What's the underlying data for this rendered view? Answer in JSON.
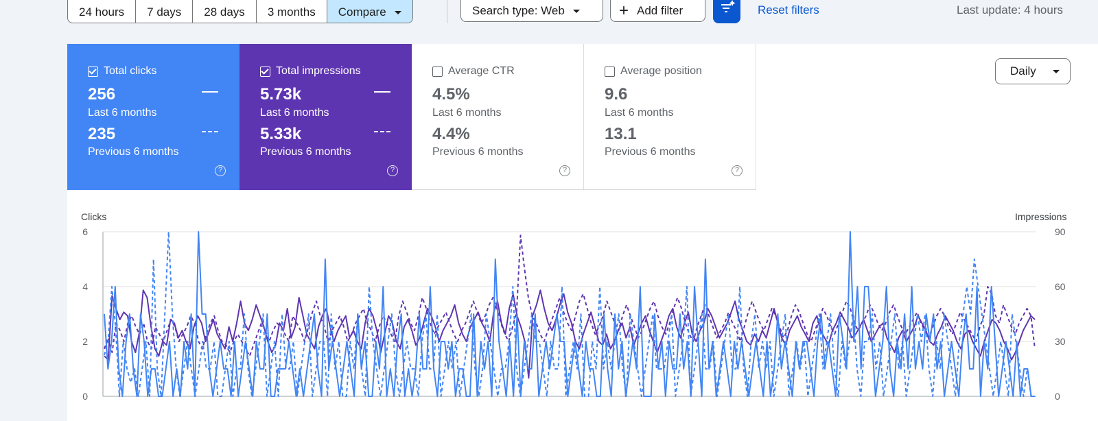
{
  "filters": {
    "date_ranges": [
      {
        "label": "24 hours",
        "active": false
      },
      {
        "label": "7 days",
        "active": false
      },
      {
        "label": "28 days",
        "active": false
      },
      {
        "label": "3 months",
        "active": false
      },
      {
        "label": "Compare",
        "active": true
      }
    ],
    "search_type_label": "Search type: Web",
    "add_filter_label": "Add filter",
    "reset_label": "Reset filters",
    "last_update": "Last update: 4 hours"
  },
  "metrics": [
    {
      "key": "clicks",
      "label": "Total clicks",
      "checked": true,
      "current": "256",
      "current_period": "Last 6 months",
      "previous": "235",
      "previous_period": "Previous 6 months",
      "color": "#4285f4"
    },
    {
      "key": "impressions",
      "label": "Total impressions",
      "checked": true,
      "current": "5.73k",
      "current_period": "Last 6 months",
      "previous": "5.33k",
      "previous_period": "Previous 6 months",
      "color": "#5e35b1"
    },
    {
      "key": "ctr",
      "label": "Average CTR",
      "checked": false,
      "current": "4.5%",
      "current_period": "Last 6 months",
      "previous": "4.4%",
      "previous_period": "Previous 6 months"
    },
    {
      "key": "position",
      "label": "Average position",
      "checked": false,
      "current": "9.6",
      "current_period": "Last 6 months",
      "previous": "13.1",
      "previous_period": "Previous 6 months"
    }
  ],
  "granularity": "Daily",
  "chart_data": {
    "type": "line",
    "left_axis": {
      "title": "Clicks",
      "ticks": [
        "0",
        "2",
        "4",
        "6"
      ],
      "range": [
        0,
        6
      ]
    },
    "right_axis": {
      "title": "Impressions",
      "ticks": [
        "0",
        "30",
        "60",
        "90"
      ],
      "range": [
        0,
        90
      ]
    },
    "grid": true,
    "series": [
      {
        "axis": "left",
        "color": "#4285f4",
        "dash": false,
        "values": [
          3,
          1,
          2,
          4,
          1,
          0,
          2,
          3,
          1,
          0,
          3,
          2,
          0,
          1,
          1,
          0,
          0,
          1,
          2,
          0,
          1,
          0,
          2,
          1,
          3,
          0,
          6,
          3,
          3,
          1,
          0,
          1,
          2,
          1,
          1,
          0,
          2,
          0,
          1,
          2,
          1,
          0,
          2,
          1,
          1,
          3,
          0,
          0,
          1,
          1,
          1,
          2,
          1,
          0,
          1,
          0,
          1,
          2,
          3,
          1,
          0,
          5,
          1,
          2,
          1,
          0,
          1,
          2,
          1,
          0,
          3,
          1,
          2,
          0,
          0,
          2,
          1,
          4,
          0,
          1,
          0,
          2,
          3,
          0,
          1,
          0,
          1,
          3,
          1,
          1,
          4,
          1,
          0,
          2,
          2,
          1,
          2,
          0,
          1,
          1,
          0,
          0,
          3,
          0,
          2,
          1,
          2,
          0,
          5,
          2,
          1,
          0,
          2,
          0,
          3,
          0,
          2,
          1,
          1,
          3,
          0,
          1,
          2,
          1,
          2,
          3,
          2,
          2,
          0,
          1,
          2,
          1,
          0,
          2,
          1,
          1,
          0,
          0,
          3,
          1,
          0,
          3,
          1,
          2,
          0,
          1,
          2,
          1,
          4,
          0,
          0,
          0,
          3,
          1,
          2,
          0,
          2,
          1,
          1,
          3,
          1,
          2,
          0,
          4,
          2,
          0,
          5,
          1,
          2,
          0,
          1,
          2,
          1,
          0,
          2,
          1,
          2,
          1,
          0,
          1,
          2,
          1,
          0,
          2,
          0,
          1,
          3,
          1,
          2,
          1,
          0,
          2,
          1,
          2,
          2,
          1,
          0,
          2,
          3,
          1,
          2,
          1,
          0,
          3,
          2,
          1,
          6,
          2,
          4,
          1,
          4,
          4,
          2,
          0,
          1,
          2,
          4,
          1,
          0,
          2,
          1,
          3,
          1,
          4,
          1,
          2,
          1,
          3,
          2,
          3,
          1,
          2,
          0,
          1,
          2,
          1,
          0,
          2,
          3,
          1,
          1,
          4,
          0,
          2,
          1,
          4,
          2,
          0,
          1,
          2,
          1,
          0,
          2,
          0,
          1,
          1,
          0,
          0
        ]
      },
      {
        "axis": "left",
        "color": "#4285f4",
        "dash": true,
        "values": [
          1.5,
          2,
          4,
          2.5,
          0,
          2,
          1,
          0.5,
          1,
          0,
          1,
          2,
          0,
          5,
          1,
          0,
          3,
          6,
          3,
          1,
          0,
          1,
          2,
          1,
          0,
          1,
          2,
          1,
          1,
          2,
          0,
          0,
          1,
          2,
          0,
          1,
          1,
          3,
          1,
          0,
          1,
          2,
          3,
          0,
          1,
          2,
          0,
          3,
          1,
          1,
          2,
          0,
          1,
          2,
          3,
          0,
          1,
          2,
          2,
          0,
          3,
          1,
          2,
          0,
          0,
          2,
          1,
          3,
          1,
          0,
          4,
          2,
          1,
          0,
          1,
          2,
          3,
          1,
          0,
          1,
          2,
          1,
          1,
          0,
          2,
          3,
          1,
          1,
          3,
          0,
          1,
          2,
          1,
          2,
          0,
          1,
          2,
          3,
          1,
          0,
          1,
          3,
          2,
          1,
          0,
          1,
          1,
          2,
          4,
          1,
          0,
          1,
          2,
          3,
          2,
          2,
          1,
          0,
          2,
          1,
          1,
          4,
          0,
          1,
          2,
          1,
          3,
          0,
          0,
          2,
          1,
          4,
          1,
          2,
          1,
          2,
          3,
          1,
          0,
          3,
          2,
          1,
          0,
          1,
          2,
          3,
          1,
          1,
          1,
          2,
          3,
          0,
          1,
          2,
          4,
          0,
          1,
          2,
          3,
          1,
          1,
          2,
          0,
          1,
          2,
          3,
          1,
          1,
          4,
          1,
          0,
          2,
          3,
          1,
          2,
          1,
          2,
          0,
          1,
          2,
          3,
          0,
          1,
          2,
          1,
          2,
          0,
          1,
          2,
          3,
          1,
          2,
          3,
          1,
          0,
          2,
          1,
          2,
          3,
          1,
          0,
          2,
          2,
          3,
          1,
          2,
          0,
          1,
          2,
          3,
          1,
          2,
          0,
          1,
          2,
          3,
          2,
          3,
          1,
          0,
          2,
          1,
          3,
          2,
          1,
          0,
          2,
          3,
          4,
          3,
          5,
          4,
          3,
          2,
          1,
          0,
          1,
          2,
          1,
          0,
          3,
          2,
          1,
          0,
          1,
          0,
          0
        ]
      },
      {
        "axis": "right",
        "color": "#5e35b1",
        "dash": false,
        "values": [
          22,
          20,
          55,
          48,
          42,
          46,
          44,
          30,
          24,
          35,
          58,
          54,
          38,
          26,
          22,
          30,
          28,
          42,
          40,
          32,
          36,
          30,
          26,
          38,
          44,
          40,
          30,
          36,
          42,
          34,
          30,
          26,
          38,
          30,
          40,
          52,
          40,
          36,
          42,
          50,
          44,
          38,
          30,
          24,
          28,
          40,
          36,
          48,
          32,
          38,
          54,
          44,
          34,
          30,
          26,
          38,
          44,
          48,
          38,
          30,
          36,
          40,
          44,
          32,
          36,
          30,
          26,
          40,
          48,
          44,
          36,
          24,
          34,
          44,
          40,
          30,
          26,
          38,
          42,
          36,
          28,
          32,
          40,
          48,
          44,
          38,
          30,
          36,
          40,
          44,
          50,
          40,
          34,
          30,
          38,
          42,
          46,
          40,
          36,
          30,
          46,
          52,
          40,
          34,
          48,
          56,
          44,
          38,
          30,
          10,
          44,
          50,
          58,
          48,
          40,
          36,
          42,
          50,
          56,
          46,
          40,
          30,
          26,
          34,
          40,
          46,
          38,
          30,
          28,
          34,
          26,
          30,
          36,
          40,
          32,
          38,
          28,
          34,
          40,
          44,
          36,
          30,
          24,
          30,
          36,
          44,
          48,
          38,
          32,
          40,
          46,
          34,
          30,
          36,
          40,
          48,
          44,
          38,
          32,
          36,
          40,
          46,
          52,
          42,
          36,
          30,
          28,
          34,
          30,
          36,
          32,
          40,
          48,
          40,
          32,
          28,
          36,
          40,
          44,
          38,
          34,
          30,
          40,
          44,
          36,
          32,
          28,
          36,
          40,
          46,
          42,
          38,
          32,
          34,
          38,
          42,
          36,
          30,
          34,
          38,
          40,
          32,
          28,
          24,
          32,
          36,
          30,
          34,
          38,
          44,
          40,
          36,
          30,
          28,
          34,
          38,
          44,
          40,
          36,
          30,
          26,
          34,
          36,
          30,
          26,
          22,
          30,
          36,
          42,
          40,
          36,
          30,
          26,
          20,
          24,
          30,
          36,
          40,
          44,
          42
        ]
      },
      {
        "axis": "right",
        "color": "#5e35b1",
        "dash": true,
        "values": [
          26,
          32,
          24,
          40,
          36,
          30,
          40,
          44,
          38,
          34,
          40,
          30,
          26,
          38,
          34,
          30,
          36,
          42,
          38,
          30,
          34,
          38,
          44,
          40,
          30,
          26,
          34,
          40,
          44,
          36,
          30,
          28,
          24,
          30,
          34,
          30,
          26,
          22,
          28,
          34,
          40,
          36,
          30,
          36,
          40,
          38,
          34,
          30,
          44,
          40,
          36,
          30,
          38,
          46,
          52,
          44,
          38,
          30,
          36,
          40,
          44,
          38,
          30,
          34,
          40,
          44,
          48,
          40,
          36,
          30,
          38,
          44,
          40,
          34,
          30,
          44,
          52,
          46,
          40,
          36,
          44,
          54,
          48,
          40,
          34,
          38,
          42,
          46,
          40,
          34,
          30,
          36,
          40,
          46,
          52,
          46,
          40,
          44,
          50,
          54,
          48,
          40,
          34,
          30,
          38,
          46,
          88,
          70,
          54,
          44,
          40,
          34,
          30,
          36,
          42,
          48,
          54,
          46,
          40,
          36,
          44,
          52,
          56,
          48,
          40,
          34,
          38,
          44,
          52,
          46,
          40,
          36,
          44,
          50,
          44,
          38,
          32,
          36,
          42,
          48,
          52,
          44,
          38,
          34,
          40,
          48,
          54,
          48,
          40,
          34,
          30,
          38,
          44,
          50,
          44,
          38,
          32,
          36,
          40,
          46,
          40,
          36,
          30,
          38,
          46,
          52,
          46,
          40,
          36,
          42,
          48,
          44,
          38,
          32,
          36,
          44,
          50,
          46,
          40,
          34,
          30,
          36,
          42,
          48,
          44,
          38,
          34,
          40,
          46,
          52,
          48,
          40,
          36,
          40,
          44,
          50,
          46,
          40,
          36,
          40,
          46,
          50,
          44,
          38,
          34,
          38,
          42,
          46,
          40,
          36,
          32,
          38,
          44,
          48,
          44,
          38,
          34,
          40,
          46,
          42,
          38,
          34,
          30,
          38,
          44,
          60,
          56,
          44,
          40,
          50,
          44,
          38,
          34,
          40,
          44,
          48,
          44,
          26
        ]
      }
    ]
  }
}
